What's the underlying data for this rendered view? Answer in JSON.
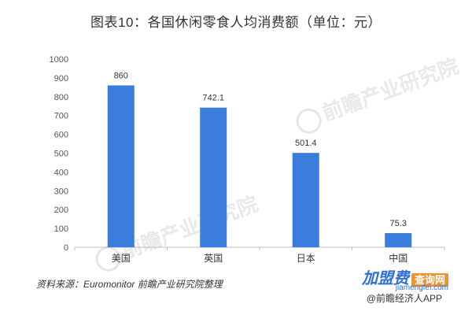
{
  "title": "图表10：各国休闲零食人均消费额（单位：元）",
  "source": "资料来源：Euromonitor 前瞻产业研究院整理",
  "watermarks": [
    "前瞻产业研究院",
    "前瞻产业研究院"
  ],
  "bottom_brand": {
    "name": "加盟费",
    "box": "查询网",
    "url": "jiamengfei.com",
    "weibo": "@前瞻经济人APP"
  },
  "colors": {
    "bar": "#3b7ddd",
    "axis": "#bfbfbf"
  },
  "chart_data": {
    "type": "bar",
    "title": "图表10：各国休闲零食人均消费额（单位：元）",
    "categories": [
      "美国",
      "英国",
      "日本",
      "中国"
    ],
    "values": [
      860,
      742.1,
      501.4,
      75.3
    ],
    "data_labels": [
      "860",
      "742.1",
      "501.4",
      "75.3"
    ],
    "ylim": [
      0,
      1000
    ],
    "yticks": [
      0,
      100,
      200,
      300,
      400,
      500,
      600,
      700,
      800,
      900,
      1000
    ],
    "xlabel": "",
    "ylabel": "",
    "grid": false,
    "legend": "none"
  }
}
